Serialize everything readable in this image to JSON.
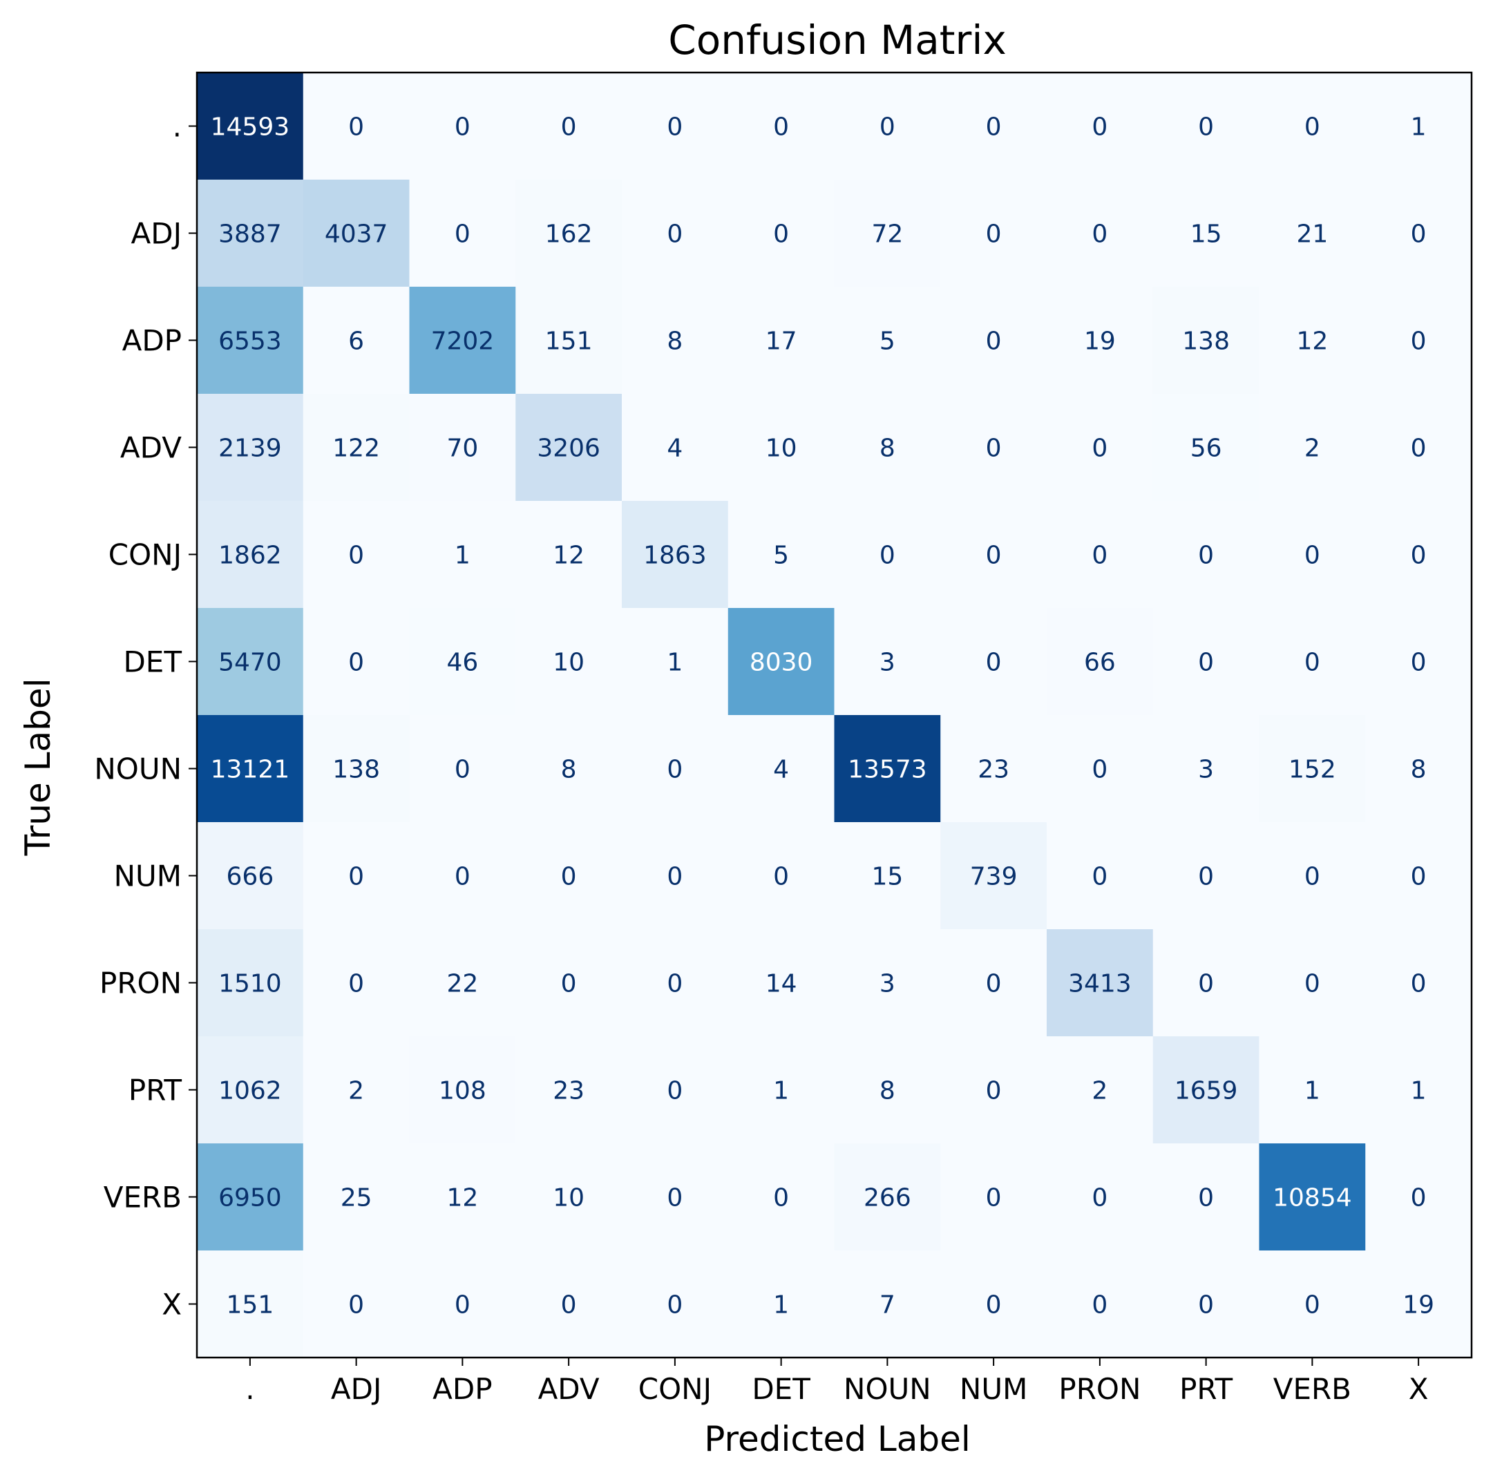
{
  "chart_data": {
    "type": "heatmap",
    "title": "Confusion Matrix",
    "xlabel": "Predicted Label",
    "ylabel": "True Label",
    "colormap": "Blues",
    "x_categories": [
      ".",
      "ADJ",
      "ADP",
      "ADV",
      "CONJ",
      "DET",
      "NOUN",
      "NUM",
      "PRON",
      "PRT",
      "VERB",
      "X"
    ],
    "y_categories": [
      ".",
      "ADJ",
      "ADP",
      "ADV",
      "CONJ",
      "DET",
      "NOUN",
      "NUM",
      "PRON",
      "PRT",
      "VERB",
      "X"
    ],
    "values": [
      [
        14593,
        0,
        0,
        0,
        0,
        0,
        0,
        0,
        0,
        0,
        0,
        1
      ],
      [
        3887,
        4037,
        0,
        162,
        0,
        0,
        72,
        0,
        0,
        15,
        21,
        0
      ],
      [
        6553,
        6,
        7202,
        151,
        8,
        17,
        5,
        0,
        19,
        138,
        12,
        0
      ],
      [
        2139,
        122,
        70,
        3206,
        4,
        10,
        8,
        0,
        0,
        56,
        2,
        0
      ],
      [
        1862,
        0,
        1,
        12,
        1863,
        5,
        0,
        0,
        0,
        0,
        0,
        0
      ],
      [
        5470,
        0,
        46,
        10,
        1,
        8030,
        3,
        0,
        66,
        0,
        0,
        0
      ],
      [
        13121,
        138,
        0,
        8,
        0,
        4,
        13573,
        23,
        0,
        3,
        152,
        8
      ],
      [
        666,
        0,
        0,
        0,
        0,
        0,
        15,
        739,
        0,
        0,
        0,
        0
      ],
      [
        1510,
        0,
        22,
        0,
        0,
        14,
        3,
        0,
        3413,
        0,
        0,
        0
      ],
      [
        1062,
        2,
        108,
        23,
        0,
        1,
        8,
        0,
        2,
        1659,
        1,
        1
      ],
      [
        6950,
        25,
        12,
        10,
        0,
        0,
        266,
        0,
        0,
        0,
        10854,
        0
      ],
      [
        151,
        0,
        0,
        0,
        0,
        1,
        7,
        0,
        0,
        0,
        0,
        19
      ]
    ],
    "colorbar": false,
    "grid": false
  }
}
